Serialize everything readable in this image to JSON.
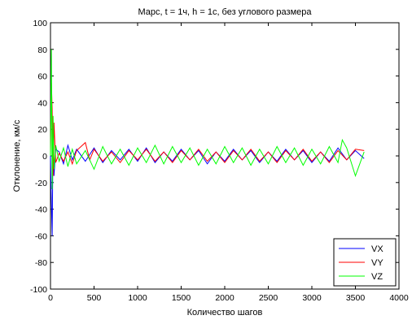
{
  "chart_data": {
    "type": "line",
    "title": "Марс, t = 1ч, h = 1с, без углового размера",
    "xlabel": "Количество шагов",
    "ylabel": "Отклонение, км/с",
    "xlim": [
      0,
      4000
    ],
    "ylim": [
      -100,
      100
    ],
    "xticks": [
      "0",
      "500",
      "1000",
      "1500",
      "2000",
      "2500",
      "3000",
      "3500",
      "4000"
    ],
    "yticks": [
      "100",
      "80",
      "60",
      "40",
      "20",
      "0",
      "-20",
      "-40",
      "-60",
      "-80",
      "-100"
    ],
    "grid": false,
    "legend_position": "bottom-right",
    "x_range_of_series": [
      0,
      3600
    ],
    "series": [
      {
        "name": "VX",
        "color": "#0000ff",
        "points": [
          [
            0,
            0
          ],
          [
            10,
            -35
          ],
          [
            20,
            -60
          ],
          [
            30,
            20
          ],
          [
            40,
            -15
          ],
          [
            60,
            5
          ],
          [
            100,
            3
          ],
          [
            150,
            -6
          ],
          [
            200,
            8
          ],
          [
            250,
            -3
          ],
          [
            300,
            5
          ],
          [
            400,
            -4
          ],
          [
            500,
            6
          ],
          [
            600,
            -5
          ],
          [
            700,
            4
          ],
          [
            800,
            -3
          ],
          [
            900,
            5
          ],
          [
            1000,
            -4
          ],
          [
            1100,
            6
          ],
          [
            1200,
            -5
          ],
          [
            1300,
            3
          ],
          [
            1400,
            -4
          ],
          [
            1500,
            5
          ],
          [
            1600,
            -3
          ],
          [
            1700,
            4
          ],
          [
            1800,
            -6
          ],
          [
            1900,
            3
          ],
          [
            2000,
            -4
          ],
          [
            2100,
            5
          ],
          [
            2200,
            -3
          ],
          [
            2300,
            4
          ],
          [
            2400,
            -5
          ],
          [
            2500,
            3
          ],
          [
            2600,
            -4
          ],
          [
            2700,
            5
          ],
          [
            2800,
            -3
          ],
          [
            2900,
            4
          ],
          [
            3000,
            -5
          ],
          [
            3100,
            3
          ],
          [
            3200,
            -4
          ],
          [
            3300,
            6
          ],
          [
            3400,
            -3
          ],
          [
            3500,
            4
          ],
          [
            3600,
            -2
          ]
        ]
      },
      {
        "name": "VY",
        "color": "#ff0000",
        "points": [
          [
            0,
            0
          ],
          [
            10,
            55
          ],
          [
            20,
            35
          ],
          [
            30,
            -15
          ],
          [
            40,
            25
          ],
          [
            60,
            -5
          ],
          [
            100,
            2
          ],
          [
            150,
            -4
          ],
          [
            200,
            3
          ],
          [
            250,
            -6
          ],
          [
            300,
            4
          ],
          [
            400,
            10
          ],
          [
            450,
            -3
          ],
          [
            500,
            5
          ],
          [
            600,
            -4
          ],
          [
            700,
            3
          ],
          [
            800,
            -5
          ],
          [
            900,
            4
          ],
          [
            1000,
            -3
          ],
          [
            1100,
            5
          ],
          [
            1200,
            -4
          ],
          [
            1300,
            3
          ],
          [
            1400,
            -5
          ],
          [
            1500,
            4
          ],
          [
            1600,
            -3
          ],
          [
            1700,
            5
          ],
          [
            1800,
            -4
          ],
          [
            1900,
            3
          ],
          [
            2000,
            -5
          ],
          [
            2100,
            4
          ],
          [
            2200,
            -3
          ],
          [
            2300,
            5
          ],
          [
            2400,
            -4
          ],
          [
            2500,
            3
          ],
          [
            2600,
            -5
          ],
          [
            2700,
            4
          ],
          [
            2800,
            -3
          ],
          [
            2900,
            5
          ],
          [
            3000,
            -4
          ],
          [
            3100,
            3
          ],
          [
            3200,
            -5
          ],
          [
            3300,
            4
          ],
          [
            3400,
            -3
          ],
          [
            3500,
            5
          ],
          [
            3600,
            4
          ]
        ]
      },
      {
        "name": "VZ",
        "color": "#00ff00",
        "points": [
          [
            0,
            0
          ],
          [
            10,
            80
          ],
          [
            20,
            -25
          ],
          [
            30,
            30
          ],
          [
            40,
            -10
          ],
          [
            60,
            8
          ],
          [
            100,
            -4
          ],
          [
            150,
            6
          ],
          [
            200,
            -8
          ],
          [
            250,
            5
          ],
          [
            300,
            -6
          ],
          [
            400,
            4
          ],
          [
            500,
            -10
          ],
          [
            600,
            7
          ],
          [
            700,
            -6
          ],
          [
            800,
            5
          ],
          [
            900,
            -7
          ],
          [
            1000,
            6
          ],
          [
            1100,
            -5
          ],
          [
            1200,
            8
          ],
          [
            1300,
            -6
          ],
          [
            1400,
            7
          ],
          [
            1500,
            -5
          ],
          [
            1600,
            6
          ],
          [
            1700,
            -7
          ],
          [
            1800,
            5
          ],
          [
            1900,
            -6
          ],
          [
            2000,
            7
          ],
          [
            2100,
            -5
          ],
          [
            2200,
            6
          ],
          [
            2300,
            -7
          ],
          [
            2400,
            5
          ],
          [
            2500,
            -6
          ],
          [
            2600,
            7
          ],
          [
            2700,
            -5
          ],
          [
            2800,
            6
          ],
          [
            2900,
            -7
          ],
          [
            3000,
            5
          ],
          [
            3100,
            -6
          ],
          [
            3200,
            7
          ],
          [
            3300,
            -5
          ],
          [
            3350,
            12
          ],
          [
            3400,
            6
          ],
          [
            3500,
            -15
          ],
          [
            3600,
            3
          ]
        ]
      }
    ]
  }
}
